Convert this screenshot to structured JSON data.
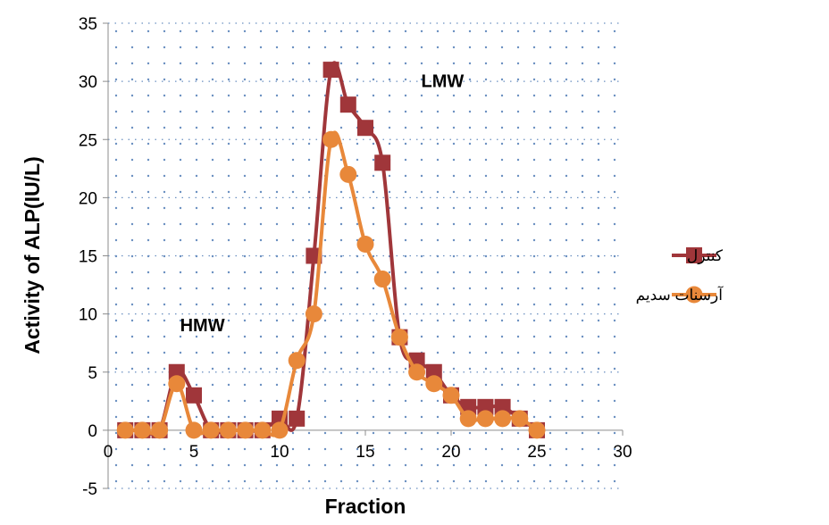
{
  "chart_data": {
    "type": "line",
    "title": "",
    "xlabel": "Fraction",
    "ylabel": "Activity of ALP(IU/L)",
    "xlim": [
      0,
      30
    ],
    "ylim": [
      -5,
      35
    ],
    "xticks": [
      0,
      5,
      10,
      15,
      20,
      25,
      30
    ],
    "yticks": [
      -5,
      0,
      5,
      10,
      15,
      20,
      25,
      30,
      35
    ],
    "grid": "dotted",
    "legend_position": "right",
    "annotations": [
      {
        "text": "HMW",
        "x": 5.5,
        "y": 8.5
      },
      {
        "text": "LMW",
        "x": 19.5,
        "y": 29.5
      }
    ],
    "series": [
      {
        "name": "کنترل",
        "color": "#a0363a",
        "marker": "square",
        "x": [
          1,
          2,
          3,
          4,
          5,
          6,
          7,
          8,
          9,
          10,
          11,
          12,
          13,
          14,
          15,
          16,
          17,
          18,
          19,
          20,
          21,
          22,
          23,
          24,
          25
        ],
        "values": [
          0,
          0,
          0,
          5,
          3,
          0,
          0,
          0,
          0,
          1,
          1,
          15,
          31,
          28,
          26,
          23,
          8,
          6,
          5,
          3,
          2,
          2,
          2,
          1,
          0
        ]
      },
      {
        "name": "آرسنات سدیم",
        "color": "#e8883a",
        "marker": "circle",
        "x": [
          1,
          2,
          3,
          4,
          5,
          6,
          7,
          8,
          9,
          10,
          11,
          12,
          13,
          14,
          15,
          16,
          17,
          18,
          19,
          20,
          21,
          22,
          23,
          24,
          25
        ],
        "values": [
          0,
          0,
          0,
          4,
          0,
          0,
          0,
          0,
          0,
          0,
          6,
          10,
          25,
          22,
          16,
          13,
          8,
          5,
          4,
          3,
          1,
          1,
          1,
          1,
          0
        ]
      }
    ]
  }
}
